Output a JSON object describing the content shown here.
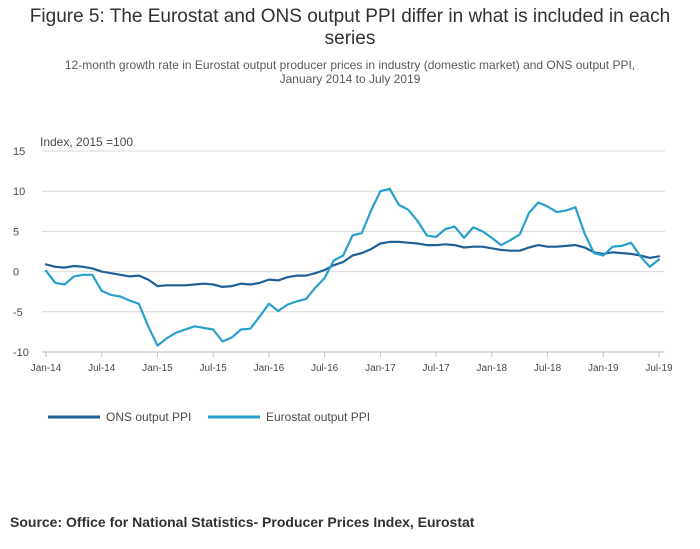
{
  "chart_data": {
    "type": "line",
    "title_lines": [
      "Figure 5: The Eurostat and ONS output PPI differ in what is included in each",
      "series"
    ],
    "subtitle_lines": [
      "12-month growth rate in Eurostat output producer prices in industry (domestic market) and ONS output PPI,",
      "January 2014 to July 2019"
    ],
    "ylabel": "Index, 2015 =100",
    "xlabel": "",
    "ylim": [
      -10,
      15
    ],
    "yticks": [
      "15",
      "10",
      "5",
      "0",
      "-5",
      "-10"
    ],
    "ytick_values": [
      15,
      10,
      5,
      0,
      -5,
      -10
    ],
    "xticks": [
      "Jan-14",
      "Jul-14",
      "Jan-15",
      "Jul-15",
      "Jan-16",
      "Jul-16",
      "Jan-17",
      "Jul-17",
      "Jan-18",
      "Jul-18",
      "Jan-19",
      "Jul-19"
    ],
    "xtick_index": [
      0,
      6,
      12,
      18,
      24,
      30,
      36,
      42,
      48,
      54,
      60,
      66
    ],
    "grid": true,
    "legend_position": "bottom-left",
    "series": [
      {
        "name": "ONS output PPI",
        "color": "#206095",
        "values": [
          0.9,
          0.6,
          0.5,
          0.7,
          0.6,
          0.4,
          0.0,
          -0.2,
          -0.4,
          -0.6,
          -0.5,
          -1.0,
          -1.8,
          -1.7,
          -1.7,
          -1.7,
          -1.6,
          -1.5,
          -1.6,
          -1.9,
          -1.8,
          -1.5,
          -1.6,
          -1.4,
          -1.0,
          -1.1,
          -0.7,
          -0.5,
          -0.5,
          -0.2,
          0.2,
          0.8,
          1.2,
          2.0,
          2.3,
          2.8,
          3.5,
          3.7,
          3.7,
          3.6,
          3.5,
          3.3,
          3.3,
          3.4,
          3.3,
          3.0,
          3.1,
          3.1,
          2.9,
          2.7,
          2.6,
          2.6,
          3.0,
          3.3,
          3.1,
          3.1,
          3.2,
          3.3,
          3.0,
          2.4,
          2.2,
          2.4,
          2.3,
          2.2,
          2.0,
          1.7,
          1.9
        ]
      },
      {
        "name": "Eurostat output PPI",
        "color": "#27A0CC",
        "values": [
          0.1,
          -1.4,
          -1.6,
          -0.6,
          -0.4,
          -0.4,
          -2.4,
          -2.9,
          -3.1,
          -3.6,
          -4.0,
          -6.8,
          -9.2,
          -8.3,
          -7.6,
          -7.2,
          -6.8,
          -7.0,
          -7.2,
          -8.7,
          -8.2,
          -7.2,
          -7.1,
          -5.6,
          -4.0,
          -4.9,
          -4.1,
          -3.7,
          -3.4,
          -2.0,
          -0.8,
          1.4,
          2.0,
          4.5,
          4.8,
          7.6,
          10.0,
          10.3,
          8.3,
          7.7,
          6.3,
          4.5,
          4.3,
          5.3,
          5.6,
          4.2,
          5.5,
          5.0,
          4.2,
          3.3,
          3.9,
          4.6,
          7.3,
          8.6,
          8.1,
          7.4,
          7.6,
          8.0,
          4.7,
          2.3,
          2.0,
          3.1,
          3.2,
          3.6,
          1.9,
          0.6,
          1.5
        ]
      }
    ]
  },
  "source": "Source: Office for National Statistics- Producer Prices Index, Eurostat"
}
